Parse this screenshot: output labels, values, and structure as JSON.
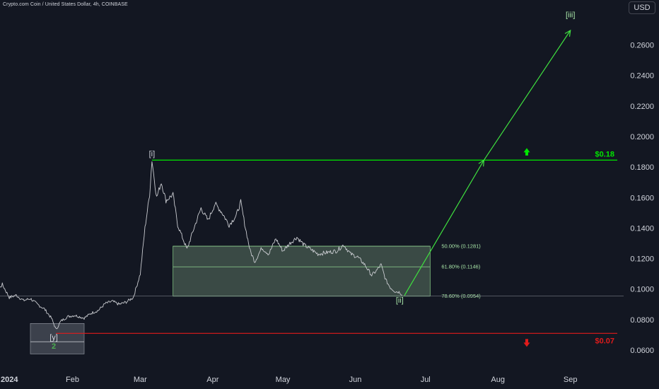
{
  "header": {
    "title": "Crypto.com Coin / United States Dollar, 4h, COINBASE",
    "currency": "USD"
  },
  "colors": {
    "background": "#131722",
    "price_line": "#c9cbd0",
    "green": "#00e600",
    "red": "#e01b1b",
    "fib_zone": "rgba(160,210,160,0.28)",
    "grid_text": "#d1d4dc"
  },
  "chart_data": {
    "type": "line",
    "title": "Crypto.com Coin / United States Dollar, 4h, COINBASE",
    "x_ticks": [
      "2024",
      "Feb",
      "Mar",
      "Apr",
      "May",
      "Jun",
      "Jul",
      "Aug",
      "Sep"
    ],
    "y_ticks": [
      "0.0600",
      "0.0800",
      "0.1000",
      "0.1200",
      "0.1400",
      "0.1600",
      "0.1800",
      "0.2000",
      "0.2200",
      "0.2400",
      "0.2600"
    ],
    "ylim": [
      0.054,
      0.282
    ],
    "xlim": [
      "2024-01-01",
      "2024-09-15"
    ],
    "y_unit": "USD",
    "series": [
      {
        "points": [
          [
            "2023-12-22",
            0.0995
          ],
          [
            "2023-12-27",
            0.1015
          ],
          [
            "2023-12-30",
            0.0975
          ],
          [
            "2024-01-02",
            0.103
          ],
          [
            "2024-01-05",
            0.0945
          ],
          [
            "2024-01-08",
            0.096
          ],
          [
            "2024-01-11",
            0.0925
          ],
          [
            "2024-01-14",
            0.0938
          ],
          [
            "2024-01-17",
            0.09
          ],
          [
            "2024-01-20",
            0.087
          ],
          [
            "2024-01-23",
            0.081
          ],
          [
            "2024-01-25",
            0.0735
          ],
          [
            "2024-01-27",
            0.079
          ],
          [
            "2024-01-30",
            0.082
          ],
          [
            "2024-02-02",
            0.0828
          ],
          [
            "2024-02-06",
            0.081
          ],
          [
            "2024-02-09",
            0.0842
          ],
          [
            "2024-02-12",
            0.086
          ],
          [
            "2024-02-15",
            0.0905
          ],
          [
            "2024-02-18",
            0.092
          ],
          [
            "2024-02-21",
            0.09
          ],
          [
            "2024-02-24",
            0.0915
          ],
          [
            "2024-02-27",
            0.0945
          ],
          [
            "2024-03-01",
            0.11
          ],
          [
            "2024-03-03",
            0.14
          ],
          [
            "2024-03-05",
            0.162
          ],
          [
            "2024-03-06",
            0.1845
          ],
          [
            "2024-03-08",
            0.16
          ],
          [
            "2024-03-10",
            0.17
          ],
          [
            "2024-03-12",
            0.158
          ],
          [
            "2024-03-15",
            0.162
          ],
          [
            "2024-03-17",
            0.142
          ],
          [
            "2024-03-19",
            0.134
          ],
          [
            "2024-03-21",
            0.126
          ],
          [
            "2024-03-24",
            0.14
          ],
          [
            "2024-03-27",
            0.153
          ],
          [
            "2024-03-30",
            0.145
          ],
          [
            "2024-04-02",
            0.156
          ],
          [
            "2024-04-05",
            0.15
          ],
          [
            "2024-04-08",
            0.142
          ],
          [
            "2024-04-11",
            0.148
          ],
          [
            "2024-04-13",
            0.157
          ],
          [
            "2024-04-15",
            0.14
          ],
          [
            "2024-04-17",
            0.125
          ],
          [
            "2024-04-19",
            0.118
          ],
          [
            "2024-04-22",
            0.127
          ],
          [
            "2024-04-25",
            0.123
          ],
          [
            "2024-04-28",
            0.133
          ],
          [
            "2024-05-01",
            0.125
          ],
          [
            "2024-05-04",
            0.13
          ],
          [
            "2024-05-07",
            0.134
          ],
          [
            "2024-05-10",
            0.129
          ],
          [
            "2024-05-13",
            0.126
          ],
          [
            "2024-05-16",
            0.123
          ],
          [
            "2024-05-20",
            0.124
          ],
          [
            "2024-05-24",
            0.125
          ],
          [
            "2024-05-27",
            0.129
          ],
          [
            "2024-05-30",
            0.123
          ],
          [
            "2024-06-02",
            0.121
          ],
          [
            "2024-06-05",
            0.116
          ],
          [
            "2024-06-08",
            0.109
          ],
          [
            "2024-06-10",
            0.112
          ],
          [
            "2024-06-12",
            0.116
          ],
          [
            "2024-06-14",
            0.106
          ],
          [
            "2024-06-16",
            0.101
          ],
          [
            "2024-06-18",
            0.0985
          ],
          [
            "2024-06-20",
            0.098
          ],
          [
            "2024-06-21",
            0.0962
          ]
        ]
      }
    ],
    "horizontal_levels": [
      {
        "label": "$0.18",
        "value": 0.1845,
        "color": "#00e600",
        "x_start": "2024-03-06",
        "arrow": "up"
      },
      {
        "label": "$0.07",
        "value": 0.071,
        "color": "#e01b1b",
        "x_start": "2024-01-25",
        "arrow": "down"
      },
      {
        "value": 0.0954,
        "color": "#787b86",
        "x_start": "2023-12-22"
      }
    ],
    "fib_zone": {
      "x_start": "2024-03-15",
      "x_end": "2024-07-03",
      "top": 0.1281,
      "bottom": 0.0954,
      "levels": [
        {
          "label": "50.00% (0.1281)",
          "value": 0.1281
        },
        {
          "label": "61.80% (0.1146)",
          "value": 0.1146
        },
        {
          "label": "78.60% (0.0954)",
          "value": 0.0954
        }
      ]
    },
    "wave_box": {
      "x_start": "2024-01-14",
      "x_end": "2024-02-06",
      "top": 0.0775,
      "bottom": 0.0575,
      "mid": 0.0655
    },
    "projection": [
      [
        "2024-06-22",
        0.0958
      ],
      [
        "2024-07-26",
        0.1845
      ],
      [
        "2024-09-01",
        0.2695
      ]
    ],
    "wave_labels": [
      {
        "text": "[i]",
        "x": "2024-03-06",
        "y": 0.187,
        "color": "#d1d4dc"
      },
      {
        "text": "[ii]",
        "x": "2024-06-20",
        "y": 0.091,
        "color": "#a8e6a8"
      },
      {
        "text": "[iii]",
        "x": "2024-09-01",
        "y": 0.278,
        "color": "#a8e6a8"
      },
      {
        "text": "[y]",
        "x": "2024-01-24",
        "y": 0.0668,
        "color": "#d1d4dc"
      },
      {
        "text": "2",
        "x": "2024-01-24",
        "y": 0.061,
        "color": "#4caf50"
      }
    ]
  }
}
